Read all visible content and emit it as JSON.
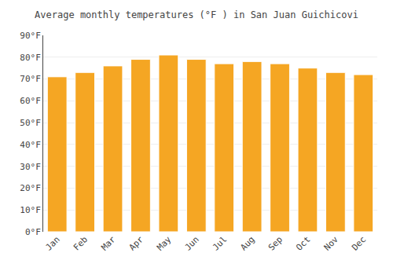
{
  "chart_data": {
    "type": "bar",
    "title": "Average monthly temperatures (°F ) in San Juan Guichicovi",
    "categories": [
      "Jan",
      "Feb",
      "Mar",
      "Apr",
      "May",
      "Jun",
      "Jul",
      "Aug",
      "Sep",
      "Oct",
      "Nov",
      "Dec"
    ],
    "values": [
      71,
      73,
      76,
      79,
      81,
      79,
      77,
      78,
      77,
      75,
      73,
      72
    ],
    "color": "#F5A623",
    "ylim": [
      0,
      90
    ],
    "yticks": [
      {
        "value": 0,
        "label": "0°F"
      },
      {
        "value": 10,
        "label": "10°F"
      },
      {
        "value": 20,
        "label": "20°F"
      },
      {
        "value": 30,
        "label": "30°F"
      },
      {
        "value": 40,
        "label": "40°F"
      },
      {
        "value": 50,
        "label": "50°F"
      },
      {
        "value": 60,
        "label": "60°F"
      },
      {
        "value": 70,
        "label": "70°F"
      },
      {
        "value": 80,
        "label": "80°F"
      },
      {
        "value": 90,
        "label": "90°F"
      }
    ],
    "grid": true
  }
}
